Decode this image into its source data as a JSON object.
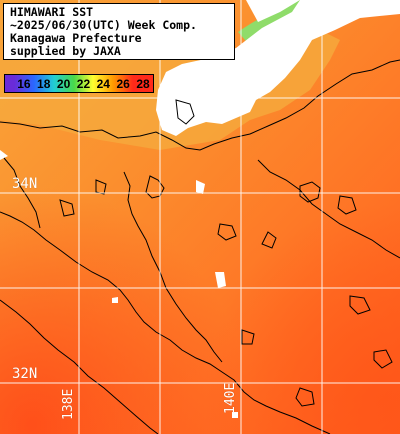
{
  "title": {
    "line1": "HIMAWARI SST",
    "line2": "~2025/06/30(UTC) Week Comp.",
    "line3": "Kanagawa Prefecture",
    "line4": "supplied by JAXA"
  },
  "colorbar": {
    "labels": [
      "16",
      "18",
      "20",
      "22",
      "24",
      "26",
      "28"
    ],
    "colors": [
      "#6a2bd8",
      "#2a68ff",
      "#22cdd4",
      "#49d84a",
      "#ffff30",
      "#ff9a00",
      "#ff2a1a"
    ]
  },
  "grid_labels": {
    "lat_34": "34N",
    "lat_32": "32N",
    "lon_138": "138E",
    "lon_140": "140E"
  },
  "palette": {
    "land": "#ffffff",
    "sea_warm": "#ff5e1f",
    "sea_mid": "#ff8a2a",
    "sea_cool": "#f7a83a",
    "coast_green": "#8de06a",
    "cloud_outline": "#000000"
  }
}
